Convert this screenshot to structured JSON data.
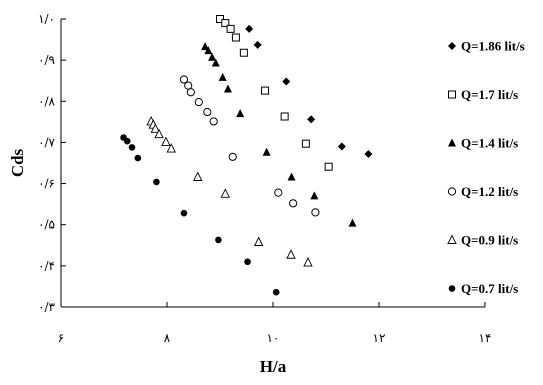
{
  "chart_data": {
    "type": "scatter",
    "xlabel": "H/a",
    "ylabel": "Cds",
    "xlim": [
      6,
      14
    ],
    "ylim": [
      0.3,
      1.0
    ],
    "x_ticks": [
      6,
      8,
      10,
      12,
      14
    ],
    "x_tick_labels": [
      "۶",
      "۸",
      "۱۰",
      "۱۲",
      "۱۴"
    ],
    "y_ticks": [
      0.3,
      0.4,
      0.5,
      0.6,
      0.7,
      0.8,
      0.9,
      1.0
    ],
    "y_tick_labels": [
      "۰/۳",
      "۰/۴",
      "۰/۵",
      "۰/۶",
      "۰/۷",
      "۰/۸",
      "۰/۹",
      "۱/۰"
    ],
    "grid": false,
    "legend_position": "right",
    "series": [
      {
        "name": "Q=1.86 lit/s",
        "marker": "diamond",
        "points": [
          [
            9.55,
            0.976
          ],
          [
            9.71,
            0.937
          ],
          [
            10.25,
            0.848
          ],
          [
            10.72,
            0.756
          ],
          [
            11.3,
            0.69
          ],
          [
            11.8,
            0.672
          ]
        ]
      },
      {
        "name": "Q=1.7 lit/s",
        "marker": "square",
        "points": [
          [
            9.0,
            1.0
          ],
          [
            9.1,
            0.99
          ],
          [
            9.2,
            0.976
          ],
          [
            9.3,
            0.955
          ],
          [
            9.45,
            0.918
          ],
          [
            9.85,
            0.826
          ],
          [
            10.22,
            0.763
          ],
          [
            10.62,
            0.697
          ],
          [
            11.05,
            0.641
          ]
        ]
      },
      {
        "name": "Q=1.4 lit/s",
        "marker": "triangle",
        "points": [
          [
            8.72,
            0.933
          ],
          [
            8.78,
            0.923
          ],
          [
            8.85,
            0.907
          ],
          [
            8.92,
            0.893
          ],
          [
            9.05,
            0.858
          ],
          [
            9.15,
            0.83
          ],
          [
            9.38,
            0.77
          ],
          [
            9.88,
            0.676
          ],
          [
            10.35,
            0.616
          ],
          [
            10.78,
            0.57
          ],
          [
            11.5,
            0.504
          ]
        ]
      },
      {
        "name": "Q=1.2 lit/s",
        "marker": "circle",
        "points": [
          [
            8.32,
            0.853
          ],
          [
            8.4,
            0.838
          ],
          [
            8.45,
            0.822
          ],
          [
            8.6,
            0.798
          ],
          [
            8.76,
            0.774
          ],
          [
            8.88,
            0.751
          ],
          [
            9.24,
            0.665
          ],
          [
            10.1,
            0.578
          ],
          [
            10.38,
            0.552
          ],
          [
            10.8,
            0.53
          ]
        ]
      },
      {
        "name": "Q=0.9 lit/s",
        "marker": "triangle-open",
        "points": [
          [
            7.7,
            0.751
          ],
          [
            7.74,
            0.743
          ],
          [
            7.78,
            0.733
          ],
          [
            7.85,
            0.72
          ],
          [
            7.98,
            0.701
          ],
          [
            8.08,
            0.685
          ],
          [
            8.58,
            0.616
          ],
          [
            9.1,
            0.575
          ],
          [
            9.73,
            0.458
          ],
          [
            10.34,
            0.427
          ],
          [
            10.66,
            0.408
          ]
        ]
      },
      {
        "name": "Q=0.7 lit/s",
        "marker": "circle-filled",
        "points": [
          [
            7.18,
            0.712
          ],
          [
            7.25,
            0.703
          ],
          [
            7.34,
            0.688
          ],
          [
            7.45,
            0.662
          ],
          [
            7.8,
            0.604
          ],
          [
            8.32,
            0.528
          ],
          [
            8.97,
            0.463
          ],
          [
            9.52,
            0.41
          ],
          [
            10.06,
            0.336
          ]
        ]
      }
    ]
  }
}
